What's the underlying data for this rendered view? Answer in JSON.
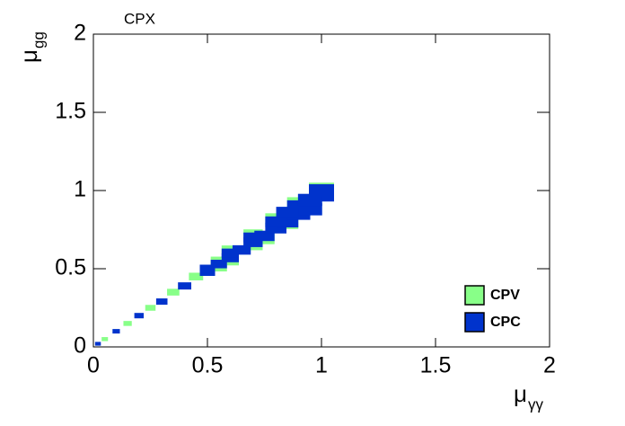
{
  "chart_data": {
    "type": "scatter",
    "title": "CPX",
    "x_label": "μ",
    "x_label_sub": "γγ",
    "y_label": "μ",
    "y_label_sub": "gg",
    "xlim": [
      0,
      2
    ],
    "ylim": [
      0,
      2
    ],
    "xticks": [
      0,
      0.5,
      1,
      1.5,
      2
    ],
    "yticks": [
      0,
      0.5,
      1,
      1.5,
      2
    ],
    "legend": "bottom-right",
    "series": [
      {
        "name": "CPV",
        "color": "#88ff88",
        "x": [
          0.05,
          0.15,
          0.25,
          0.35,
          0.45,
          0.55,
          0.6,
          0.7,
          0.8,
          0.9,
          1.0,
          0.55,
          0.6,
          0.7,
          0.75,
          0.85
        ],
        "values": [
          0.05,
          0.15,
          0.25,
          0.35,
          0.45,
          0.55,
          0.62,
          0.72,
          0.82,
          0.92,
          1.01,
          0.51,
          0.55,
          0.65,
          0.69,
          0.79
        ]
      },
      {
        "name": "CPC",
        "color": "#0033cc",
        "x": [
          0.02,
          0.1,
          0.2,
          0.3,
          0.4,
          0.5,
          0.55,
          0.6,
          0.65,
          0.7,
          0.75,
          0.8,
          0.85,
          0.9,
          0.95,
          1.0,
          0.7,
          0.8,
          0.9,
          0.95,
          1.0,
          0.6,
          0.5,
          0.85
        ],
        "values": [
          0.02,
          0.1,
          0.2,
          0.29,
          0.39,
          0.48,
          0.53,
          0.57,
          0.62,
          0.67,
          0.71,
          0.76,
          0.8,
          0.85,
          0.88,
          0.97,
          0.7,
          0.8,
          0.9,
          0.94,
          1.0,
          0.6,
          0.5,
          0.86
        ]
      }
    ]
  }
}
